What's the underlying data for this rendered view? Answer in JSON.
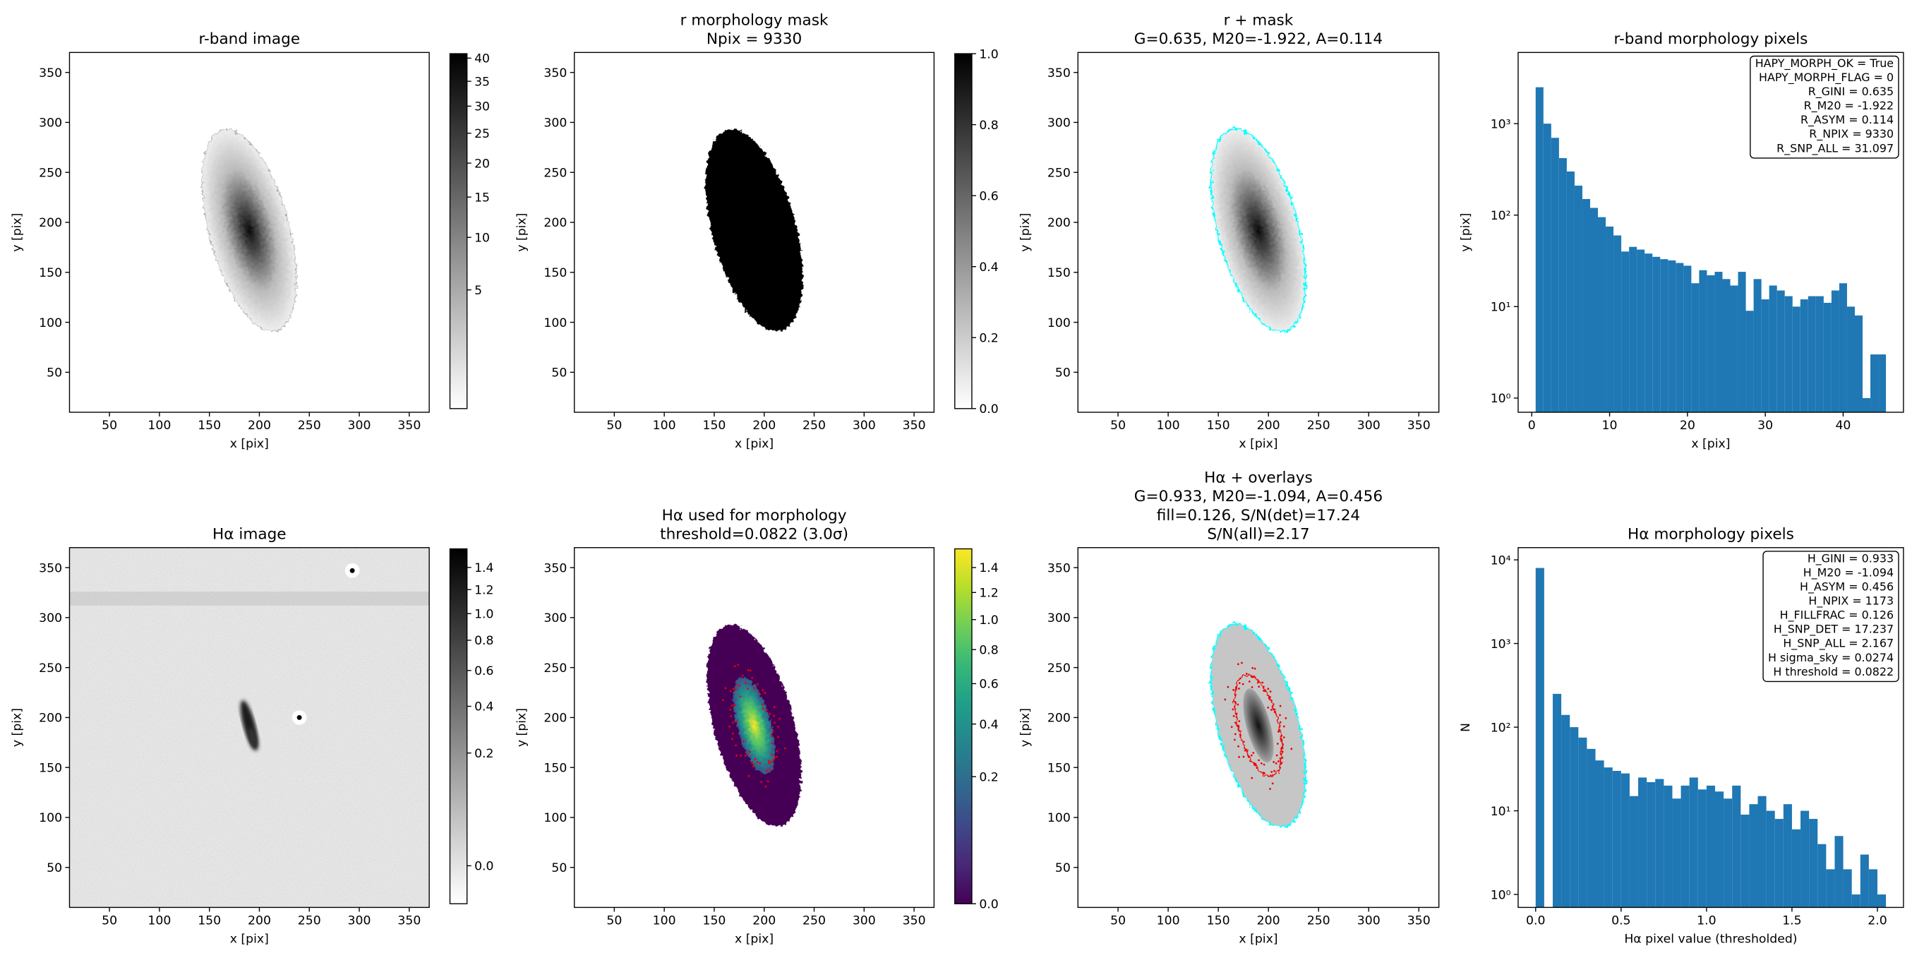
{
  "chart_data": [
    {
      "type": "image",
      "title": [
        "r-band image"
      ],
      "xlabel": "x [pix]",
      "ylabel": "y [pix]",
      "xlim": [
        10,
        370
      ],
      "ylim": [
        10,
        370
      ],
      "xticks": [
        50,
        100,
        150,
        200,
        250,
        300,
        350
      ],
      "yticks": [
        50,
        100,
        150,
        200,
        250,
        300,
        350
      ],
      "colorbar": {
        "cmap": "gray_r",
        "scale": "sqrt",
        "clim": [
          0.02,
          41
        ],
        "ticks": [
          5,
          10,
          15,
          20,
          25,
          30,
          35,
          40
        ]
      }
    },
    {
      "type": "image",
      "title": [
        "r morphology mask",
        "Npix = 9330"
      ],
      "xlabel": "x [pix]",
      "ylabel": "y [pix]",
      "xlim": [
        10,
        370
      ],
      "ylim": [
        10,
        370
      ],
      "xticks": [
        50,
        100,
        150,
        200,
        250,
        300,
        350
      ],
      "yticks": [
        50,
        100,
        150,
        200,
        250,
        300,
        350
      ],
      "colorbar": {
        "cmap": "gray_r",
        "scale": "linear",
        "clim": [
          0,
          1
        ],
        "ticks": [
          {
            "value": 0,
            "label": "0.0"
          },
          0.2,
          0.4,
          0.6,
          0.8,
          {
            "value": 1,
            "label": "1.0"
          }
        ]
      }
    },
    {
      "type": "image",
      "title": [
        "r + mask",
        "G=0.635, M20=-1.922, A=0.114"
      ],
      "xlabel": "x [pix]",
      "ylabel": "y [pix]",
      "xlim": [
        10,
        370
      ],
      "ylim": [
        10,
        370
      ],
      "xticks": [
        50,
        100,
        150,
        200,
        250,
        300,
        350
      ],
      "yticks": [
        50,
        100,
        150,
        200,
        250,
        300,
        350
      ]
    },
    {
      "type": "histogram",
      "title": [
        "r-band morphology pixels"
      ],
      "xlabel": "x [pix]",
      "ylabel": "y [pix]",
      "color": "#1f77b4",
      "log_y": true,
      "bins": [
        0.5,
        1.5,
        2.5,
        3.5,
        4.5,
        5.5,
        6.5,
        7.5,
        8.5,
        9.5,
        10.5,
        11.5,
        12.5,
        13.5,
        14.5,
        15.5,
        16.5,
        17.5,
        18.5,
        19.5,
        20.5,
        21.5,
        22.5,
        23.5,
        24.5,
        25.5,
        26.5,
        27.5,
        28.5,
        29.5,
        30.5,
        31.5,
        32.5,
        33.5,
        34.5,
        35.5,
        36.5,
        37.5,
        38.5,
        39.5,
        40.5,
        41.5,
        42.5,
        43.5,
        44.5,
        45.5
      ],
      "counts": [
        2500,
        1000,
        700,
        420,
        300,
        210,
        150,
        120,
        95,
        75,
        60,
        40,
        45,
        42,
        38,
        35,
        33,
        32,
        30,
        28,
        18,
        25,
        22,
        24,
        20,
        17,
        24,
        9,
        20,
        12,
        17,
        15,
        13,
        10,
        12,
        13,
        13,
        11,
        15,
        18,
        10,
        8,
        1,
        3,
        3
      ],
      "xlim": [
        -1.75,
        47.75
      ],
      "ylim": [
        0.7,
        6000
      ],
      "xticks": [
        0,
        10,
        20,
        30,
        40
      ],
      "yticks": [
        {
          "value": 1,
          "label": "10⁰"
        },
        {
          "value": 10,
          "label": "10¹"
        },
        {
          "value": 100,
          "label": "10²"
        },
        {
          "value": 1000,
          "label": "10³"
        }
      ],
      "annotation": [
        "HAPY_MORPH_OK = True",
        "HAPY_MORPH_FLAG = 0",
        "R_GINI = 0.635",
        "R_M20 = -1.922",
        "R_ASYM = 0.114",
        "R_NPIX = 9330",
        "R_SNP_ALL = 31.097"
      ]
    },
    {
      "type": "image",
      "title": [
        "Hα image"
      ],
      "xlabel": "x [pix]",
      "ylabel": "y [pix]",
      "xlim": [
        10,
        370
      ],
      "ylim": [
        10,
        370
      ],
      "xticks": [
        50,
        100,
        150,
        200,
        250,
        300,
        350
      ],
      "yticks": [
        50,
        100,
        150,
        200,
        250,
        300,
        350
      ],
      "colorbar": {
        "cmap": "gray_r",
        "scale": "sqrt",
        "clim": [
          -0.0227,
          1.58
        ],
        "ticks": [
          {
            "value": 0,
            "label": "0.0"
          },
          0.2,
          0.4,
          0.6,
          0.8,
          {
            "value": 1,
            "label": "1.0"
          },
          1.2,
          1.4
        ]
      }
    },
    {
      "type": "image",
      "title": [
        "Hα used for morphology",
        "threshold=0.0822 (3.0σ)"
      ],
      "xlabel": "x [pix]",
      "ylabel": "y [pix]",
      "xlim": [
        10,
        370
      ],
      "ylim": [
        10,
        370
      ],
      "xticks": [
        50,
        100,
        150,
        200,
        250,
        300,
        350
      ],
      "yticks": [
        50,
        100,
        150,
        200,
        250,
        300,
        350
      ],
      "colorbar": {
        "cmap": "viridis",
        "scale": "sqrt",
        "clim": [
          0,
          1.56
        ],
        "ticks": [
          {
            "value": 0,
            "label": "0.0"
          },
          0.2,
          0.4,
          0.6,
          0.8,
          {
            "value": 1,
            "label": "1.0"
          },
          1.2,
          1.4
        ]
      }
    },
    {
      "type": "image",
      "title": [
        "Hα + overlays",
        "G=0.933, M20=-1.094, A=0.456",
        "fill=0.126, S/N(det)=17.24",
        "S/N(all)=2.17"
      ],
      "xlabel": "x [pix]",
      "ylabel": "y [pix]",
      "xlim": [
        10,
        370
      ],
      "ylim": [
        10,
        370
      ],
      "xticks": [
        50,
        100,
        150,
        200,
        250,
        300,
        350
      ],
      "yticks": [
        50,
        100,
        150,
        200,
        250,
        300,
        350
      ]
    },
    {
      "type": "histogram",
      "title": [
        "Hα morphology pixels"
      ],
      "xlabel": "Hα pixel value (thresholded)",
      "ylabel": "N",
      "color": "#1f77b4",
      "log_y": true,
      "bins": [
        0,
        0.05,
        0.1,
        0.15,
        0.2,
        0.25,
        0.3,
        0.35,
        0.4,
        0.45,
        0.5,
        0.55,
        0.6,
        0.65,
        0.7,
        0.75,
        0.8,
        0.85,
        0.9,
        0.95,
        1,
        1.05,
        1.1,
        1.15,
        1.2,
        1.25,
        1.3,
        1.35,
        1.4,
        1.45,
        1.5,
        1.55,
        1.6,
        1.65,
        1.7,
        1.75,
        1.8,
        1.85,
        1.9,
        1.95,
        2,
        2.05
      ],
      "counts": [
        8000,
        0,
        250,
        140,
        100,
        75,
        55,
        40,
        33,
        30,
        28,
        15,
        25,
        22,
        24,
        20,
        14,
        20,
        25,
        18,
        20,
        17,
        14,
        20,
        9,
        12,
        15,
        10,
        8,
        12,
        6,
        10,
        8,
        4,
        2,
        5,
        2,
        1,
        3,
        2,
        1
      ],
      "xlim": [
        -0.1025,
        2.1525
      ],
      "ylim": [
        0.7,
        14000
      ],
      "xticks": [
        {
          "value": 0,
          "label": "0.0"
        },
        0.5,
        {
          "value": 1,
          "label": "1.0"
        },
        1.5,
        {
          "value": 2,
          "label": "2.0"
        }
      ],
      "yticks": [
        {
          "value": 1,
          "label": "10⁰"
        },
        {
          "value": 10,
          "label": "10¹"
        },
        {
          "value": 100,
          "label": "10²"
        },
        {
          "value": 1000,
          "label": "10³"
        },
        {
          "value": 10000,
          "label": "10⁴"
        }
      ],
      "annotation": [
        "H_GINI = 0.933",
        "H_M20 = -1.094",
        "H_ASYM = 0.456",
        "H_NPIX = 1173",
        "H_FILLFRAC = 0.126",
        "H_SNP_DET = 17.237",
        "H_SNP_ALL = 2.167",
        "H sigma_sky = 0.0274",
        "H threshold = 0.0822"
      ]
    }
  ]
}
